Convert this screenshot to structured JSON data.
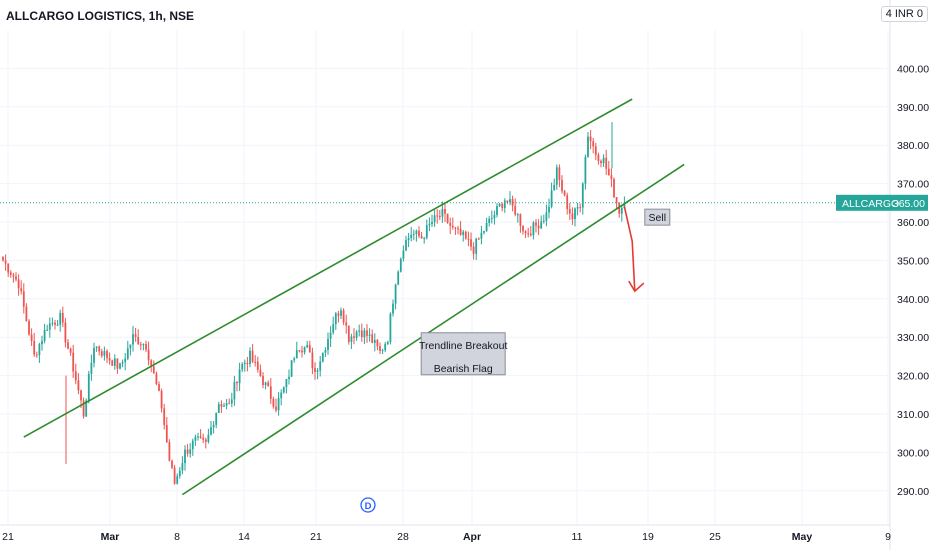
{
  "header": {
    "symbol": "ALLCARGO LOGISTICS",
    "interval": "1h",
    "exchange": "NSE",
    "currency_button": "INR 0",
    "currency_prefix": "4"
  },
  "colors": {
    "up": "#26a69a",
    "down": "#ef5350",
    "channel": "#2e8b2e",
    "price_line": "#26a69a",
    "arrow": "#e53935"
  },
  "chart_data": {
    "type": "candlestick",
    "title": "ALLCARGO LOGISTICS, 1h, NSE",
    "ylim": [
      280,
      410
    ],
    "yticks": [
      290,
      300,
      310,
      320,
      330,
      340,
      350,
      360,
      370,
      380,
      390,
      400
    ],
    "ytick_labels": [
      "290.00",
      "300.00",
      "310.00",
      "320.00",
      "330.00",
      "340.00",
      "350.00",
      "360.00",
      "370.00",
      "380.00",
      "390.00",
      "400.00"
    ],
    "xticks": [
      "21",
      "Mar",
      "8",
      "14",
      "21",
      "28",
      "Apr",
      "11",
      "19",
      "25",
      "May",
      "9"
    ],
    "last_price": {
      "label": "ALLCARGO",
      "value": "365.00",
      "y": 365
    },
    "close_path": [
      {
        "t": 0,
        "c": 350
      },
      {
        "t": 6,
        "c": 344
      },
      {
        "t": 12,
        "c": 325
      },
      {
        "t": 17,
        "c": 333
      },
      {
        "t": 22,
        "c": 335
      },
      {
        "t": 27,
        "c": 322
      },
      {
        "t": 31,
        "c": 310
      },
      {
        "t": 35,
        "c": 328
      },
      {
        "t": 40,
        "c": 325
      },
      {
        "t": 45,
        "c": 322
      },
      {
        "t": 50,
        "c": 330
      },
      {
        "t": 55,
        "c": 328
      },
      {
        "t": 58,
        "c": 320
      },
      {
        "t": 61,
        "c": 312
      },
      {
        "t": 64,
        "c": 298
      },
      {
        "t": 66,
        "c": 292
      },
      {
        "t": 70,
        "c": 300
      },
      {
        "t": 74,
        "c": 303
      },
      {
        "t": 78,
        "c": 302
      },
      {
        "t": 83,
        "c": 313
      },
      {
        "t": 87,
        "c": 312
      },
      {
        "t": 91,
        "c": 322
      },
      {
        "t": 95,
        "c": 325
      },
      {
        "t": 99,
        "c": 320
      },
      {
        "t": 102,
        "c": 316
      },
      {
        "t": 105,
        "c": 312
      },
      {
        "t": 109,
        "c": 318
      },
      {
        "t": 113,
        "c": 328
      },
      {
        "t": 117,
        "c": 327
      },
      {
        "t": 120,
        "c": 321
      },
      {
        "t": 123,
        "c": 326
      },
      {
        "t": 127,
        "c": 334
      },
      {
        "t": 130,
        "c": 338
      },
      {
        "t": 133,
        "c": 330
      },
      {
        "t": 137,
        "c": 332
      },
      {
        "t": 141,
        "c": 330
      },
      {
        "t": 145,
        "c": 326
      },
      {
        "t": 148,
        "c": 330
      },
      {
        "t": 151,
        "c": 345
      },
      {
        "t": 154,
        "c": 354
      },
      {
        "t": 157,
        "c": 357
      },
      {
        "t": 161,
        "c": 356
      },
      {
        "t": 165,
        "c": 360
      },
      {
        "t": 169,
        "c": 362
      },
      {
        "t": 173,
        "c": 358
      },
      {
        "t": 177,
        "c": 356
      },
      {
        "t": 181,
        "c": 353
      },
      {
        "t": 185,
        "c": 358
      },
      {
        "t": 189,
        "c": 362
      },
      {
        "t": 193,
        "c": 366
      },
      {
        "t": 197,
        "c": 363
      },
      {
        "t": 201,
        "c": 357
      },
      {
        "t": 205,
        "c": 359
      },
      {
        "t": 209,
        "c": 362
      },
      {
        "t": 213,
        "c": 373
      },
      {
        "t": 216,
        "c": 366
      },
      {
        "t": 219,
        "c": 361
      },
      {
        "t": 222,
        "c": 365
      },
      {
        "t": 225,
        "c": 383
      },
      {
        "t": 228,
        "c": 378
      },
      {
        "t": 231,
        "c": 376
      },
      {
        "t": 234,
        "c": 370
      },
      {
        "t": 237,
        "c": 363
      },
      {
        "t": 239,
        "c": 365
      }
    ],
    "channel": {
      "upper": [
        {
          "t": 8,
          "y": 304
        },
        {
          "t": 242,
          "y": 392
        }
      ],
      "lower": [
        {
          "t": 69,
          "y": 289
        },
        {
          "t": 262,
          "y": 375
        }
      ]
    },
    "annotations": [
      {
        "type": "label",
        "text": "Sell",
        "t": 248,
        "y": 361
      },
      {
        "type": "label",
        "lines": [
          "Trendline Breakout",
          "Bearish Flag"
        ],
        "t": 177,
        "y": 321
      },
      {
        "type": "arrow",
        "points": [
          {
            "t": 239,
            "y": 364
          },
          {
            "t": 242,
            "y": 355
          },
          {
            "t": 243,
            "y": 342
          }
        ]
      }
    ],
    "event_marker": "D"
  }
}
